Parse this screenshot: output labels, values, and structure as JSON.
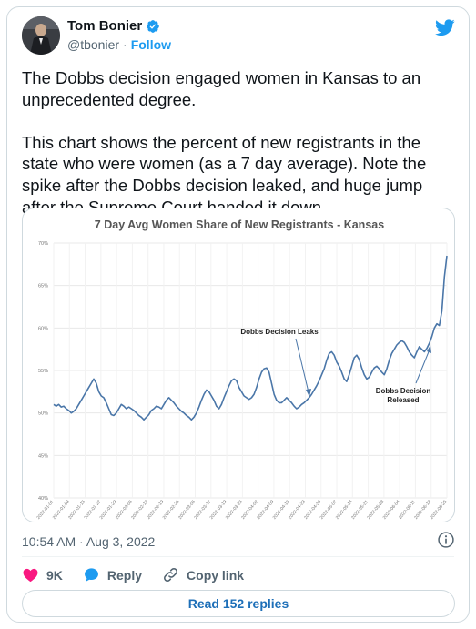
{
  "user": {
    "name": "Tom Bonier",
    "handle": "@tbonier",
    "separator": "·",
    "follow_label": "Follow"
  },
  "tweet": {
    "text": "The Dobbs decision engaged women in Kansas to an unprecedented degree.\n\nThis chart shows the percent of new registrants in the state who were women (as a 7 day average). Note the spike after the Dobbs decision leaked, and huge jump after the Supreme Court handed it down.",
    "timestamp": "10:54 AM · Aug 3, 2022"
  },
  "actions": {
    "likes": "9K",
    "reply_label": "Reply",
    "copy_link_label": "Copy link",
    "read_replies_label": "Read 152 replies"
  },
  "colors": {
    "accent": "#1d9bf0",
    "like": "#f91880",
    "line": "#4a76a8"
  },
  "chart_data": {
    "type": "line",
    "title": "7 Day Avg Women Share of New Registrants - Kansas",
    "xlabel": "",
    "ylabel": "",
    "ylim": [
      0.4,
      0.7
    ],
    "yticks": [
      "40%",
      "45%",
      "50%",
      "55%",
      "60%",
      "65%",
      "70%"
    ],
    "grid": true,
    "legend": "none",
    "x_tick_labels": [
      "2022-01-01",
      "2022-01-08",
      "2022-01-15",
      "2022-01-22",
      "2022-01-29",
      "2022-02-05",
      "2022-02-12",
      "2022-02-19",
      "2022-02-26",
      "2022-03-05",
      "2022-03-12",
      "2022-03-19",
      "2022-03-26",
      "2022-04-02",
      "2022-04-09",
      "2022-04-16",
      "2022-04-23",
      "2022-04-30",
      "2022-05-07",
      "2022-05-14",
      "2022-05-21",
      "2022-05-28",
      "2022-06-04",
      "2022-06-11",
      "2022-06-18",
      "2022-06-25"
    ],
    "series": [
      {
        "values": [
          0.51,
          0.508,
          0.51,
          0.507,
          0.508,
          0.505,
          0.503,
          0.5,
          0.502,
          0.505,
          0.51,
          0.515,
          0.52,
          0.525,
          0.53,
          0.535,
          0.54,
          0.535,
          0.525,
          0.52,
          0.518,
          0.512,
          0.505,
          0.498,
          0.497,
          0.5,
          0.505,
          0.51,
          0.508,
          0.505,
          0.507,
          0.505,
          0.503,
          0.5,
          0.497,
          0.495,
          0.492,
          0.495,
          0.498,
          0.503,
          0.505,
          0.508,
          0.507,
          0.505,
          0.51,
          0.515,
          0.518,
          0.515,
          0.512,
          0.508,
          0.505,
          0.502,
          0.5,
          0.497,
          0.495,
          0.492,
          0.495,
          0.5,
          0.507,
          0.515,
          0.522,
          0.527,
          0.525,
          0.52,
          0.515,
          0.508,
          0.505,
          0.51,
          0.518,
          0.525,
          0.532,
          0.538,
          0.54,
          0.538,
          0.53,
          0.525,
          0.52,
          0.518,
          0.516,
          0.518,
          0.522,
          0.53,
          0.54,
          0.548,
          0.552,
          0.553,
          0.548,
          0.535,
          0.522,
          0.515,
          0.512,
          0.512,
          0.515,
          0.518,
          0.515,
          0.512,
          0.508,
          0.505,
          0.507,
          0.51,
          0.512,
          0.515,
          0.518,
          0.522,
          0.527,
          0.532,
          0.538,
          0.545,
          0.552,
          0.562,
          0.57,
          0.572,
          0.568,
          0.56,
          0.555,
          0.548,
          0.54,
          0.537,
          0.545,
          0.555,
          0.565,
          0.568,
          0.563,
          0.553,
          0.545,
          0.54,
          0.542,
          0.548,
          0.553,
          0.555,
          0.552,
          0.548,
          0.545,
          0.552,
          0.562,
          0.57,
          0.575,
          0.58,
          0.583,
          0.585,
          0.583,
          0.578,
          0.572,
          0.568,
          0.565,
          0.572,
          0.578,
          0.575,
          0.572,
          0.576,
          0.582,
          0.59,
          0.6,
          0.605,
          0.603,
          0.62,
          0.66,
          0.685
        ]
      }
    ],
    "annotations": [
      {
        "text": [
          "Dobbs Decision Leaks"
        ],
        "x_label": "2022-05-02"
      },
      {
        "text": [
          "Dobbs Decision",
          "Released"
        ],
        "x_label": "2022-06-24"
      }
    ]
  }
}
